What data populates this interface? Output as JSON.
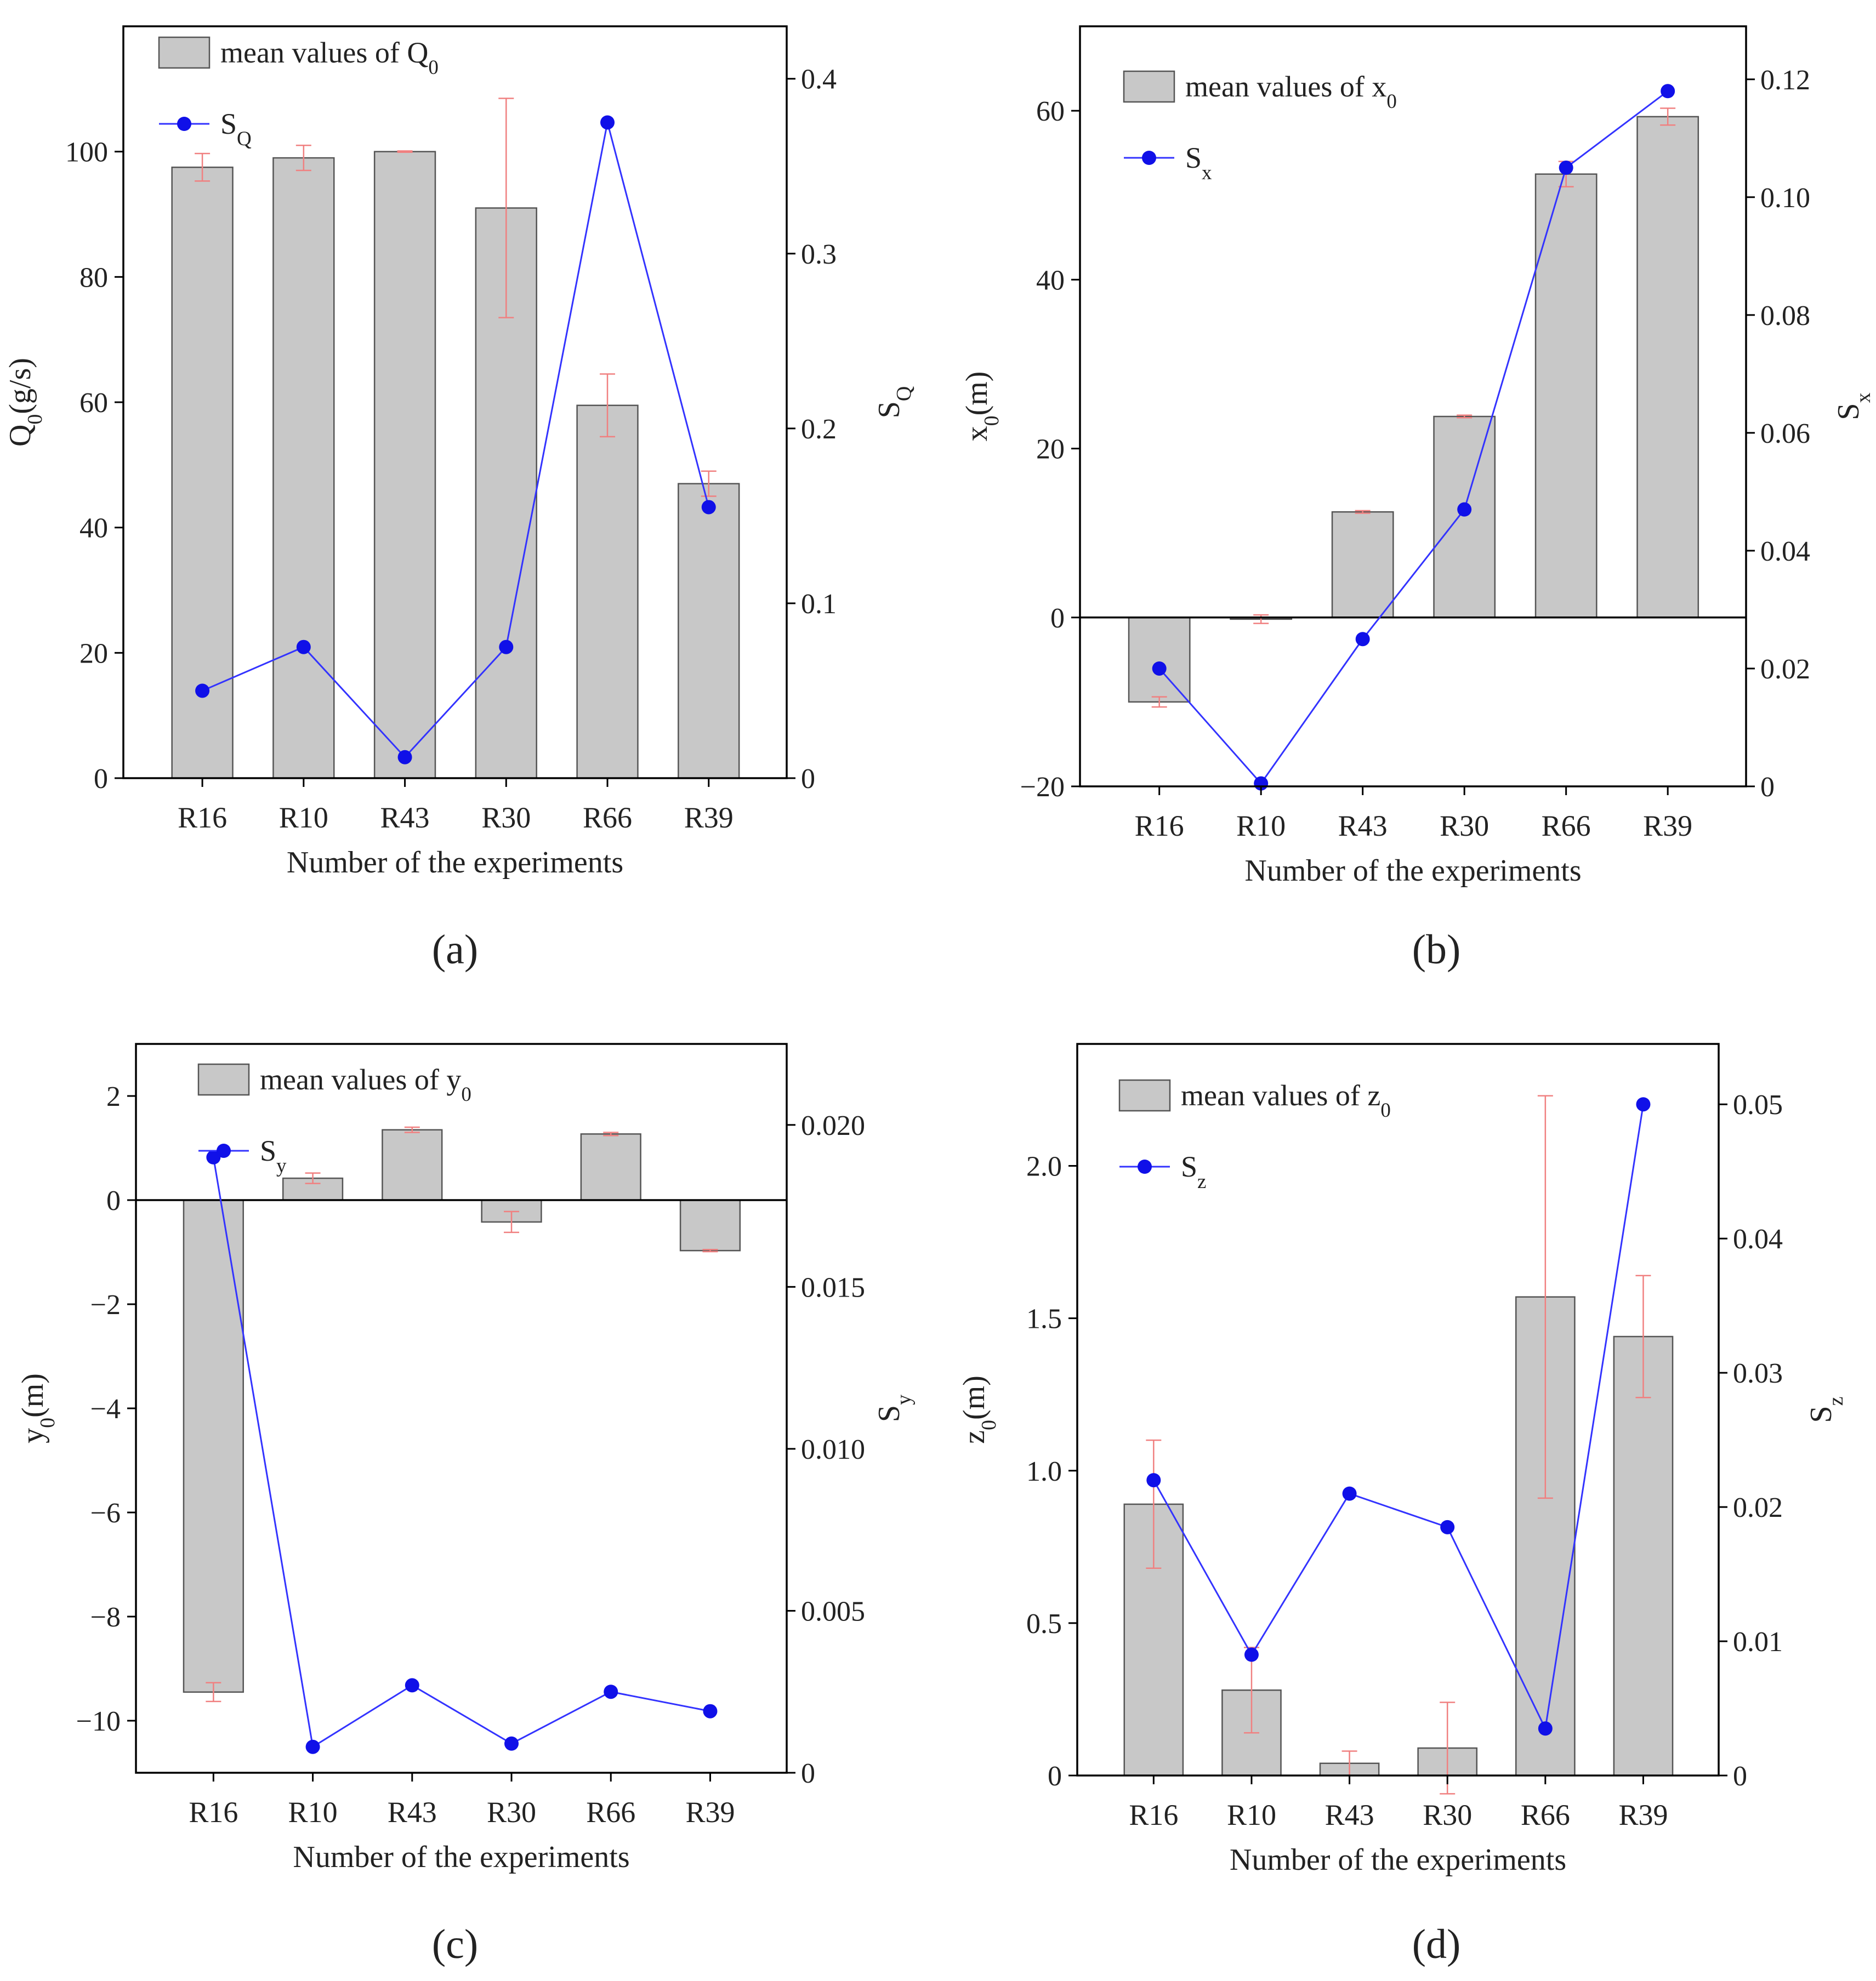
{
  "figure": {
    "panel_labels": [
      "(a)",
      "(b)",
      "(c)",
      "(d)"
    ]
  },
  "colors": {
    "bar_fill": "#c8c8c8",
    "bar_stroke": "#555555",
    "error_bar": "#f08080",
    "line": "#3333ff",
    "marker": "#1010e8",
    "axis": "#000000",
    "text": "#222222"
  },
  "chart_data": [
    {
      "id": "a",
      "type": "bar",
      "title": "",
      "categories": [
        "R16",
        "R10",
        "R43",
        "R30",
        "R66",
        "R39"
      ],
      "xlabel": "Number of the experiments",
      "ylabel": {
        "main": "Q",
        "sub": "0",
        "tail": "(g/s)"
      },
      "y2label": {
        "main": "S",
        "sub": "Q"
      },
      "ylim": [
        0,
        120
      ],
      "yticks": [
        0,
        20,
        40,
        60,
        80,
        100
      ],
      "y2lim": [
        0,
        0.43
      ],
      "y2ticks": [
        0,
        0.1,
        0.2,
        0.3,
        0.4
      ],
      "y2tick_labels": [
        "0",
        "0.1",
        "0.2",
        "0.3",
        "0.4"
      ],
      "bars": {
        "name": {
          "main": "mean values of Q",
          "sub": "0"
        },
        "values": [
          97.5,
          99,
          100,
          91,
          59.5,
          47
        ],
        "errors": [
          2.2,
          2.0,
          0.1,
          17.5,
          5.0,
          2.0
        ]
      },
      "line": {
        "name": {
          "main": "S",
          "sub": "Q"
        },
        "values": [
          0.05,
          0.075,
          0.012,
          0.075,
          0.375,
          0.155
        ]
      },
      "zero_line": false
    },
    {
      "id": "b",
      "type": "bar",
      "title": "",
      "categories": [
        "R16",
        "R10",
        "R43",
        "R30",
        "R66",
        "R39"
      ],
      "xlabel": "Number of the experiments",
      "ylabel": {
        "main": "x",
        "sub": "0",
        "tail": "(m)"
      },
      "y2label": {
        "main": "S",
        "sub": "x"
      },
      "ylim": [
        -20,
        70
      ],
      "yticks": [
        -20,
        0,
        20,
        40,
        60
      ],
      "y2lim": [
        0,
        0.129
      ],
      "y2ticks": [
        0,
        0.02,
        0.04,
        0.06,
        0.08,
        0.1,
        0.12
      ],
      "y2tick_labels": [
        "0",
        "0.02",
        "0.04",
        "0.06",
        "0.08",
        "0.10",
        "0.12"
      ],
      "bars": {
        "name": {
          "main": "mean values of x",
          "sub": "0"
        },
        "values": [
          -10,
          -0.2,
          12.5,
          23.8,
          52.5,
          59.3
        ],
        "errors": [
          0.6,
          0.5,
          0.15,
          0.15,
          1.5,
          1.0
        ]
      },
      "line": {
        "name": {
          "main": "S",
          "sub": "x"
        },
        "values": [
          0.02,
          0.0005,
          0.025,
          0.047,
          0.105,
          0.118
        ]
      },
      "zero_line": true
    },
    {
      "id": "c",
      "type": "bar",
      "title": "",
      "categories": [
        "R16",
        "R10",
        "R43",
        "R30",
        "R66",
        "R39"
      ],
      "xlabel": "Number of the experiments",
      "ylabel": {
        "main": "y",
        "sub": "0",
        "tail": "(m)"
      },
      "y2label": {
        "main": "S",
        "sub": "y"
      },
      "ylim": [
        -11,
        3
      ],
      "yticks": [
        -10,
        -8,
        -6,
        -4,
        -2,
        0,
        2
      ],
      "y2lim": [
        0,
        0.0225
      ],
      "y2ticks": [
        0,
        0.005,
        0.01,
        0.015,
        0.02
      ],
      "y2tick_labels": [
        "0",
        "0.005",
        "0.010",
        "0.015",
        "0.020"
      ],
      "bars": {
        "name": {
          "main": "mean values of y",
          "sub": "0"
        },
        "values": [
          -9.45,
          0.42,
          1.35,
          -0.42,
          1.27,
          -0.97
        ],
        "errors": [
          0.18,
          0.1,
          0.05,
          0.2,
          0.03,
          0.02
        ]
      },
      "line": {
        "name": {
          "main": "S",
          "sub": "y"
        },
        "values": [
          0.019,
          0.0008,
          0.0027,
          0.0009,
          0.0025,
          0.0019
        ]
      },
      "zero_line": true
    },
    {
      "id": "d",
      "type": "bar",
      "title": "",
      "categories": [
        "R16",
        "R10",
        "R43",
        "R30",
        "R66",
        "R39"
      ],
      "xlabel": "Number of the experiments",
      "ylabel": {
        "main": "z",
        "sub": "0",
        "tail": "(m)"
      },
      "y2label": {
        "main": "S",
        "sub": "z"
      },
      "ylim": [
        0,
        2.4
      ],
      "yticks": [
        0,
        0.5,
        1.0,
        1.5,
        2.0
      ],
      "ytick_labels": [
        "0",
        "0.5",
        "1.0",
        "1.5",
        "2.0"
      ],
      "y2lim": [
        0,
        0.0545
      ],
      "y2ticks": [
        0,
        0.01,
        0.02,
        0.03,
        0.04,
        0.05
      ],
      "y2tick_labels": [
        "0",
        "0.01",
        "0.02",
        "0.03",
        "0.04",
        "0.05"
      ],
      "bars": {
        "name": {
          "main": "mean values of z",
          "sub": "0"
        },
        "values": [
          0.89,
          0.28,
          0.04,
          0.09,
          1.57,
          1.44
        ],
        "errors": [
          0.21,
          0.14,
          0.04,
          0.15,
          0.66,
          0.2
        ]
      },
      "line": {
        "name": {
          "main": "S",
          "sub": "z"
        },
        "values": [
          0.022,
          0.009,
          0.021,
          0.0185,
          0.0035,
          0.05
        ]
      },
      "zero_line": false
    }
  ]
}
